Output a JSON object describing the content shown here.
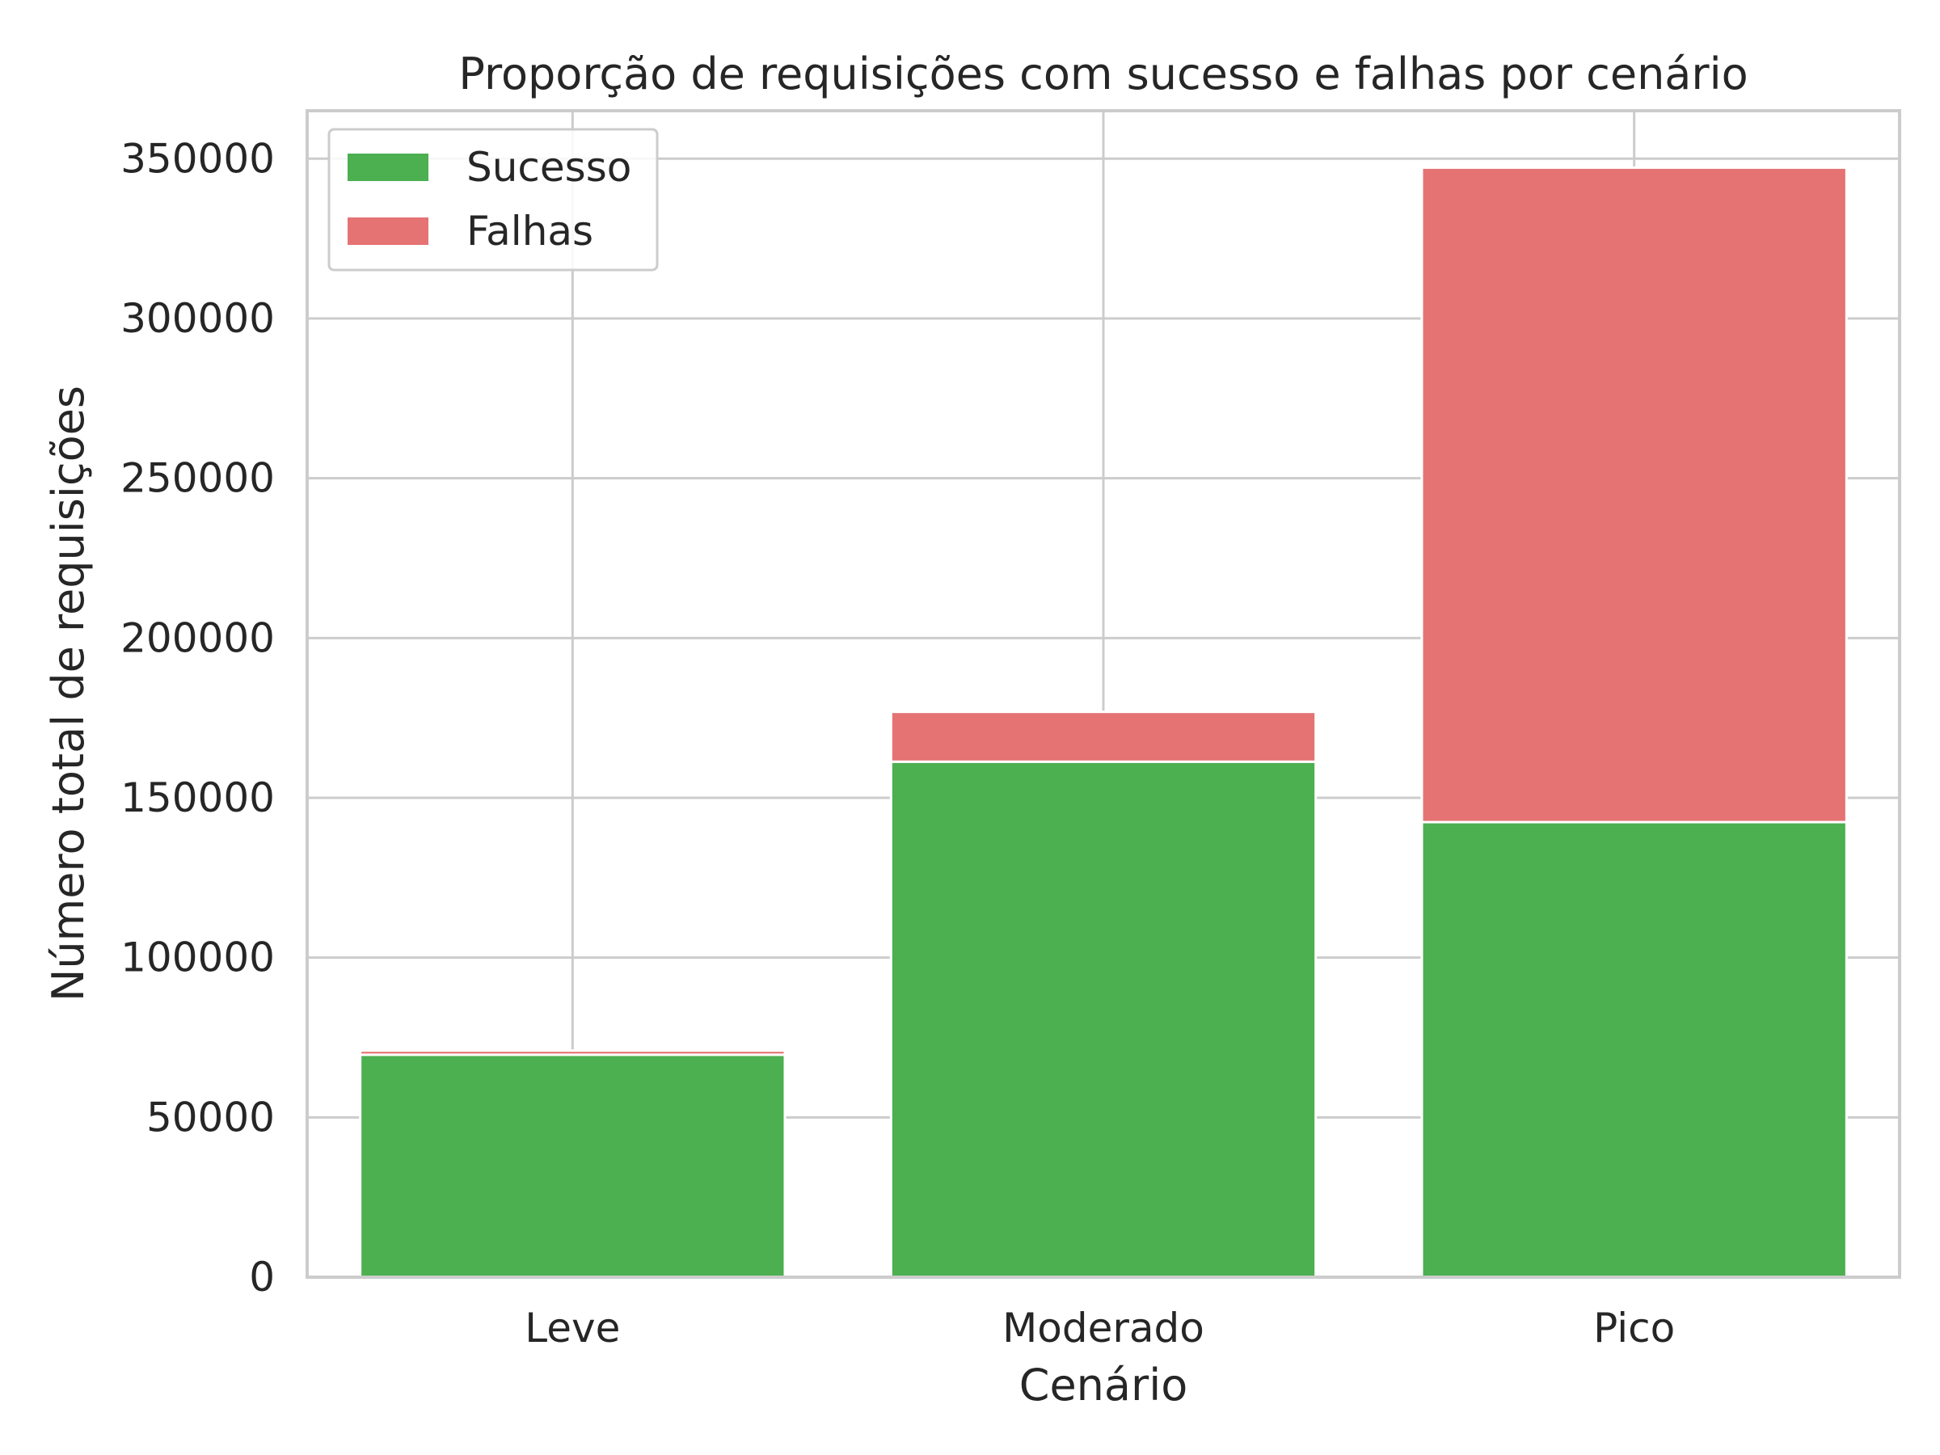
{
  "chart_data": {
    "type": "bar",
    "stacked": true,
    "title": "Proporção de requisições com sucesso e falhas por cenário",
    "xlabel": "Cenário",
    "ylabel": "Número total de requisições",
    "categories": [
      "Leve",
      "Moderado",
      "Pico"
    ],
    "series": [
      {
        "name": "Sucesso",
        "color": "#4caf50",
        "values": [
          69600,
          161300,
          142400
        ]
      },
      {
        "name": "Falhas",
        "color": "#e57373",
        "values": [
          1300,
          15600,
          204800
        ]
      }
    ],
    "ylim": [
      0,
      365000
    ],
    "yticks": [
      0,
      50000,
      100000,
      150000,
      200000,
      250000,
      300000,
      350000
    ],
    "ytick_labels": [
      "0",
      "50000",
      "100000",
      "150000",
      "200000",
      "250000",
      "300000",
      "350000"
    ],
    "grid": true,
    "legend": "upper-left"
  }
}
